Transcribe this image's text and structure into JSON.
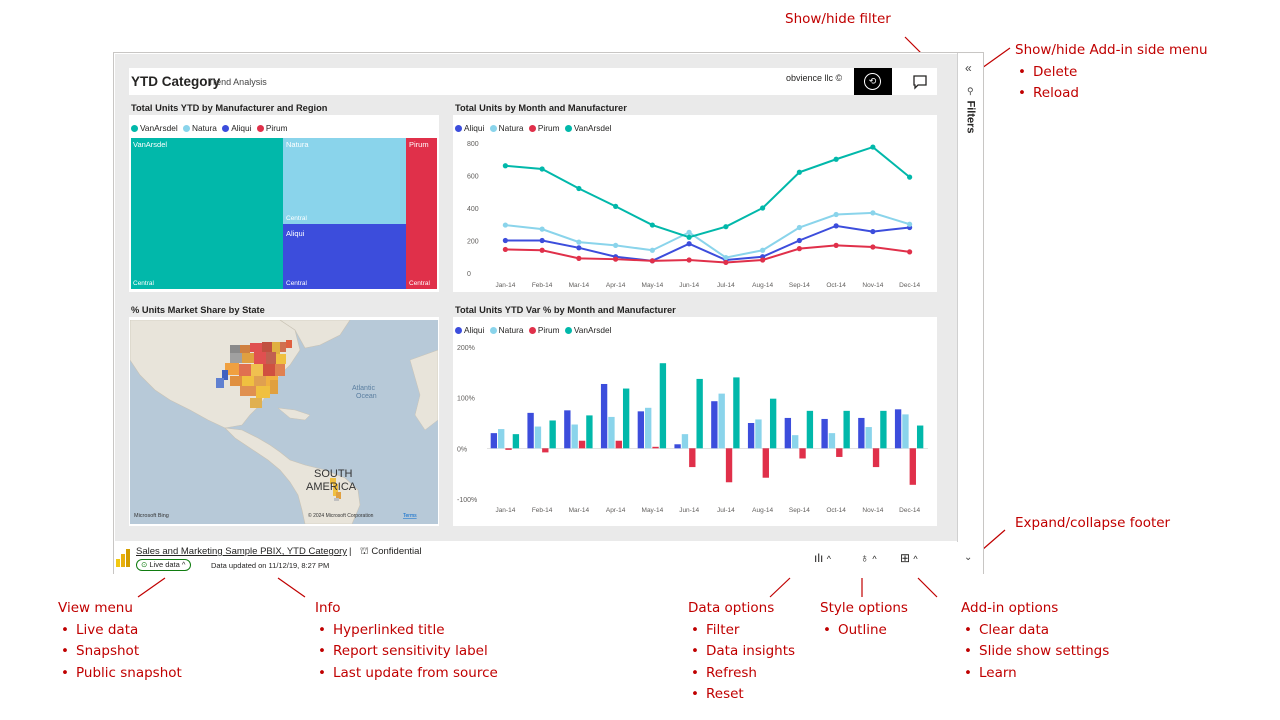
{
  "report": {
    "title": "YTD Category",
    "subtitle": "Trend Analysis",
    "license": "obvience llc ©",
    "filters_label": "Filters",
    "filters_collapse": "«"
  },
  "treemap": {
    "title": "Total Units YTD by Manufacturer and Region",
    "legend": [
      {
        "name": "VanArsdel",
        "color": "#01b8aa"
      },
      {
        "name": "Natura",
        "color": "#8ad4eb"
      },
      {
        "name": "Aliqui",
        "color": "#3c4ddc"
      },
      {
        "name": "Pirum",
        "color": "#e0304a"
      }
    ],
    "tiles": [
      {
        "name": "VanArsdel",
        "region": "Central",
        "share": 0.49
      },
      {
        "name": "Natura",
        "region": "Central",
        "share": 0.2
      },
      {
        "name": "Aliqui",
        "region": "Central",
        "share": 0.2
      },
      {
        "name": "Pirum",
        "region": "Central",
        "share": 0.11
      }
    ]
  },
  "map": {
    "title": "% Units Market Share by State",
    "labels": {
      "ocean1": "Atlantic",
      "ocean2": "Ocean",
      "sa1": "SOUTH",
      "sa2": "AMERICA"
    },
    "bing": "Microsoft Bing",
    "copyright": "© 2024 Microsoft Corporation",
    "terms": "Terms"
  },
  "footer": {
    "title": "Sales and Marketing Sample PBIX, YTD Category",
    "separator": "|",
    "sensitivity": "Confidential",
    "live": "Live data",
    "updated": "Data updated on 11/12/19, 8:27 PM"
  },
  "annotations": {
    "show_filter": "Show/hide filter",
    "side_menu": {
      "title": "Show/hide Add-in side menu",
      "items": [
        "Delete",
        "Reload"
      ]
    },
    "expand_footer": "Expand/collapse footer",
    "view_menu": {
      "title": "View menu",
      "items": [
        "Live data",
        "Snapshot",
        "Public snapshot"
      ]
    },
    "info": {
      "title": "Info",
      "items": [
        "Hyperlinked title",
        "Report sensitivity label",
        "Last update from source"
      ]
    },
    "data_options": {
      "title": "Data options",
      "items": [
        "Filter",
        "Data insights",
        "Refresh",
        "Reset"
      ]
    },
    "style_options": {
      "title": "Style options",
      "items": [
        "Outline"
      ]
    },
    "addin_options": {
      "title": "Add-in options",
      "items": [
        "Clear data",
        "Slide show settings",
        "Learn"
      ]
    }
  },
  "chart_data": [
    {
      "type": "line",
      "title": "Total Units by Month and Manufacturer",
      "categories": [
        "Jan-14",
        "Feb-14",
        "Mar-14",
        "Apr-14",
        "May-14",
        "Jun-14",
        "Jul-14",
        "Aug-14",
        "Sep-14",
        "Oct-14",
        "Nov-14",
        "Dec-14"
      ],
      "ylim": [
        0,
        800
      ],
      "yticks": [
        "0",
        "200",
        "400",
        "600",
        "800"
      ],
      "series": [
        {
          "name": "Aliqui",
          "color": "#3c4ddc",
          "values": [
            200,
            200,
            155,
            100,
            75,
            180,
            80,
            100,
            200,
            290,
            255,
            280
          ]
        },
        {
          "name": "Natura",
          "color": "#8ad4eb",
          "values": [
            295,
            270,
            190,
            170,
            140,
            250,
            95,
            140,
            280,
            360,
            370,
            300
          ]
        },
        {
          "name": "Pirum",
          "color": "#e0304a",
          "values": [
            145,
            140,
            90,
            85,
            75,
            80,
            65,
            80,
            150,
            170,
            160,
            130
          ]
        },
        {
          "name": "VanArsdel",
          "color": "#01b8aa",
          "values": [
            660,
            640,
            520,
            410,
            295,
            220,
            285,
            400,
            620,
            700,
            775,
            590
          ]
        }
      ]
    },
    {
      "type": "bar",
      "title": "Total Units YTD Var % by Month and Manufacturer",
      "categories": [
        "Jan-14",
        "Feb-14",
        "Mar-14",
        "Apr-14",
        "May-14",
        "Jun-14",
        "Jul-14",
        "Aug-14",
        "Sep-14",
        "Oct-14",
        "Nov-14",
        "Dec-14"
      ],
      "ylim": [
        -100,
        200
      ],
      "yticks": [
        "-100%",
        "0%",
        "100%",
        "200%"
      ],
      "series": [
        {
          "name": "Aliqui",
          "color": "#3c4ddc",
          "values": [
            30,
            70,
            75,
            127,
            73,
            8,
            93,
            50,
            60,
            58,
            60,
            77
          ]
        },
        {
          "name": "Natura",
          "color": "#8ad4eb",
          "values": [
            38,
            43,
            47,
            62,
            80,
            28,
            108,
            57,
            26,
            30,
            42,
            67
          ]
        },
        {
          "name": "Pirum",
          "color": "#e0304a",
          "values": [
            -3,
            -8,
            15,
            15,
            3,
            -37,
            -67,
            -58,
            -20,
            -17,
            -37,
            -72
          ]
        },
        {
          "name": "VanArsdel",
          "color": "#01b8aa",
          "values": [
            28,
            55,
            65,
            118,
            168,
            137,
            140,
            98,
            74,
            74,
            74,
            45
          ]
        }
      ]
    }
  ]
}
